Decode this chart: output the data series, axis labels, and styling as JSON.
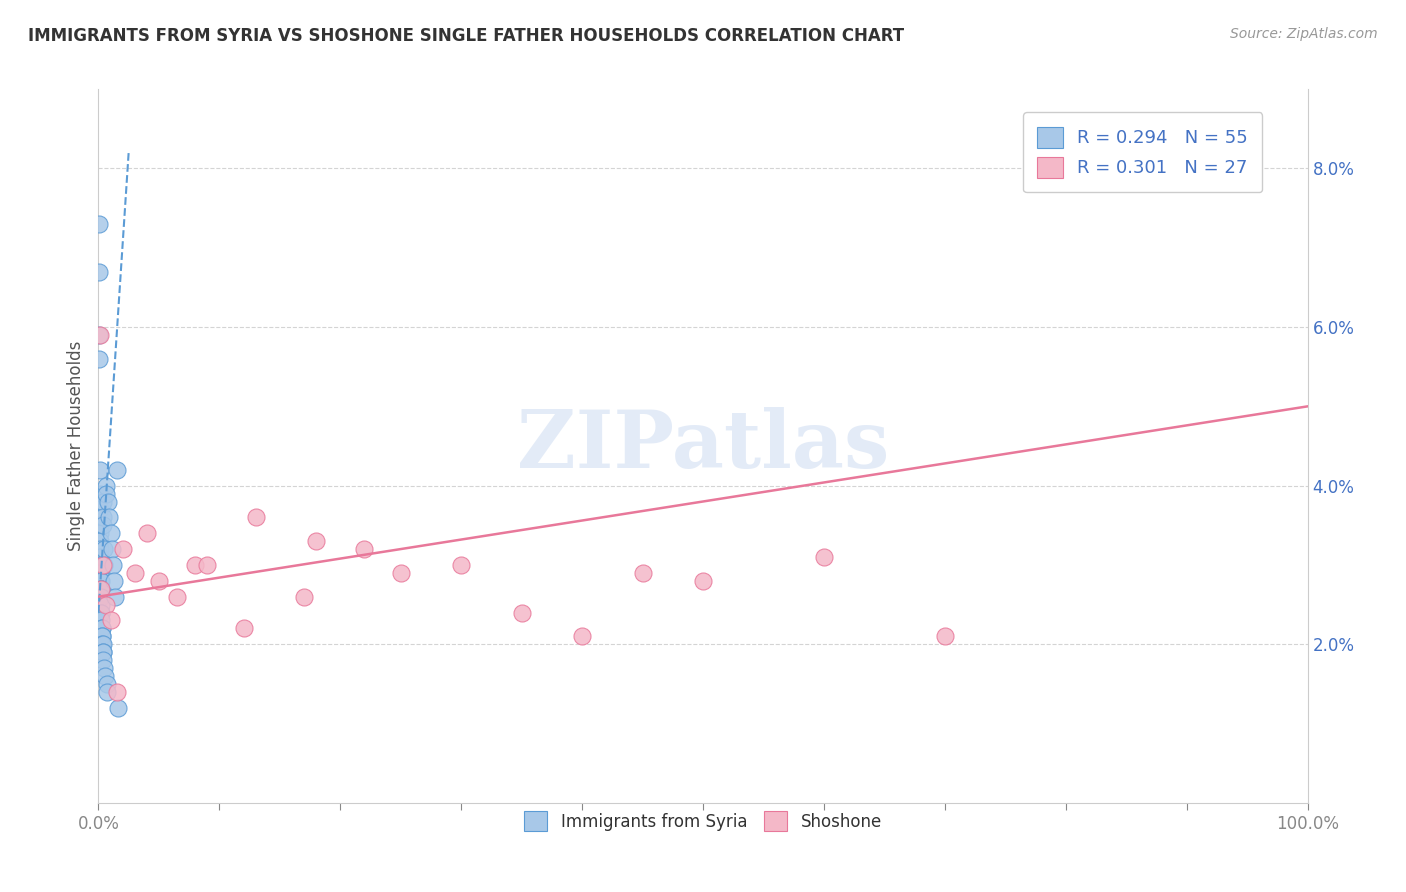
{
  "title": "IMMIGRANTS FROM SYRIA VS SHOSHONE SINGLE FATHER HOUSEHOLDS CORRELATION CHART",
  "source": "Source: ZipAtlas.com",
  "ylabel": "Single Father Households",
  "legend_label1": "Immigrants from Syria",
  "legend_label2": "Shoshone",
  "r1": 0.294,
  "n1": 55,
  "r2": 0.301,
  "n2": 27,
  "color_syria": "#a8c8e8",
  "color_shoshone": "#f4b8c8",
  "color_syria_edge": "#5b9bd5",
  "color_shoshone_edge": "#e8789a",
  "trendline_syria_color": "#5b9bd5",
  "trendline_shoshone_color": "#e8789a",
  "watermark": "ZIPatlas",
  "xlim": [
    0,
    100
  ],
  "ylim": [
    0.0,
    9.0
  ],
  "yticks": [
    2,
    4,
    6,
    8
  ],
  "ytick_labels": [
    "2.0%",
    "4.0%",
    "6.0%",
    "8.0%"
  ],
  "syria_x": [
    0.05,
    0.05,
    0.08,
    0.08,
    0.1,
    0.1,
    0.1,
    0.1,
    0.1,
    0.12,
    0.12,
    0.12,
    0.12,
    0.15,
    0.15,
    0.15,
    0.15,
    0.18,
    0.18,
    0.2,
    0.2,
    0.2,
    0.22,
    0.22,
    0.25,
    0.25,
    0.28,
    0.28,
    0.3,
    0.3,
    0.32,
    0.35,
    0.35,
    0.38,
    0.4,
    0.4,
    0.4,
    0.42,
    0.45,
    0.5,
    0.5,
    0.55,
    0.6,
    0.65,
    0.7,
    0.75,
    0.8,
    0.9,
    1.0,
    1.1,
    1.2,
    1.3,
    1.4,
    1.5,
    1.6
  ],
  "syria_y": [
    7.3,
    6.7,
    5.9,
    5.6,
    4.2,
    3.9,
    3.7,
    3.5,
    3.4,
    3.3,
    3.2,
    3.1,
    3.0,
    3.0,
    2.9,
    2.9,
    2.8,
    2.8,
    2.7,
    2.7,
    2.7,
    2.6,
    2.5,
    2.4,
    2.4,
    2.3,
    2.2,
    2.2,
    2.1,
    2.1,
    2.0,
    2.0,
    1.9,
    1.9,
    1.8,
    3.8,
    3.6,
    3.5,
    3.2,
    3.0,
    1.7,
    1.6,
    4.0,
    3.9,
    1.5,
    1.4,
    3.8,
    3.6,
    3.4,
    3.2,
    3.0,
    2.8,
    2.6,
    4.2,
    1.2
  ],
  "shoshone_x": [
    0.15,
    0.4,
    1.5,
    3.0,
    5.0,
    8.0,
    12.0,
    17.0,
    22.0,
    30.0,
    40.0,
    50.0,
    60.0,
    0.25,
    0.6,
    1.0,
    2.0,
    4.0,
    6.5,
    9.0,
    95.0,
    13.0,
    18.0,
    25.0,
    35.0,
    45.0,
    70.0
  ],
  "shoshone_y": [
    5.9,
    3.0,
    1.4,
    2.9,
    2.8,
    3.0,
    2.2,
    2.6,
    3.2,
    3.0,
    2.1,
    2.8,
    3.1,
    2.7,
    2.5,
    2.3,
    3.2,
    3.4,
    2.6,
    3.0,
    8.3,
    3.6,
    3.3,
    2.9,
    2.4,
    2.9,
    2.1
  ],
  "syria_trend_x": [
    0.0,
    2.5
  ],
  "syria_trend_y": [
    2.4,
    8.2
  ],
  "shoshone_trend_x": [
    0.0,
    100.0
  ],
  "shoshone_trend_y": [
    2.6,
    5.0
  ],
  "background_color": "#ffffff",
  "grid_color": "#d0d0d0",
  "tick_color": "#4472c4",
  "title_color": "#333333",
  "axis_label_color": "#555555",
  "legend_text_color": "#4472c4"
}
